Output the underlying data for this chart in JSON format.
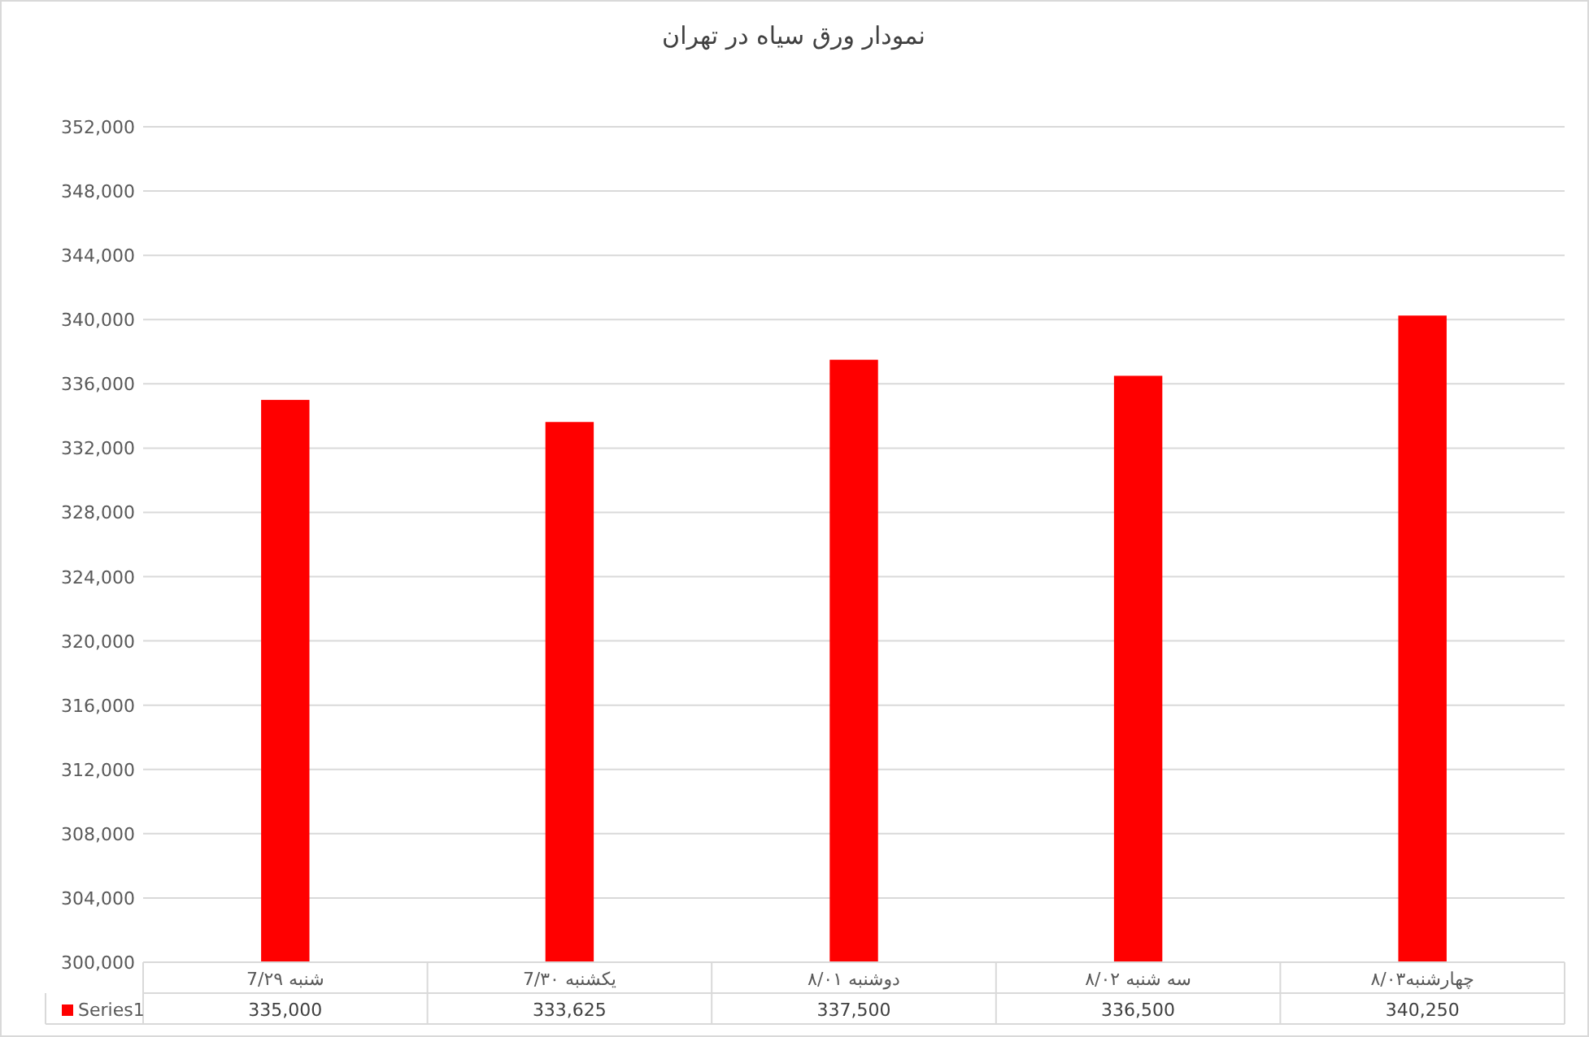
{
  "chart_data": {
    "type": "bar",
    "title": "نمودار ورق سیاه در تهران",
    "categories": [
      "شنبه 7/۲۹",
      "یکشنبه 7/۳۰",
      "دوشنبه ۸/۰۱",
      "سه شنبه ۸/۰۲",
      "چهارشنبه۸/۰۳"
    ],
    "series": [
      {
        "name": "Series1",
        "color": "#ff0000",
        "values": [
          335000,
          333625,
          337500,
          336500,
          340250
        ],
        "value_labels": [
          "335,000",
          "333,625",
          "337,500",
          "336,500",
          "340,250"
        ]
      }
    ],
    "ylim": [
      300000,
      352000
    ],
    "yticks": [
      {
        "value": 300000,
        "label": "300,000"
      },
      {
        "value": 304000,
        "label": "304,000"
      },
      {
        "value": 308000,
        "label": "308,000"
      },
      {
        "value": 312000,
        "label": "312,000"
      },
      {
        "value": 316000,
        "label": "316,000"
      },
      {
        "value": 320000,
        "label": "320,000"
      },
      {
        "value": 324000,
        "label": "324,000"
      },
      {
        "value": 328000,
        "label": "328,000"
      },
      {
        "value": 332000,
        "label": "332,000"
      },
      {
        "value": 336000,
        "label": "336,000"
      },
      {
        "value": 340000,
        "label": "340,000"
      },
      {
        "value": 344000,
        "label": "344,000"
      },
      {
        "value": 348000,
        "label": "348,000"
      },
      {
        "value": 352000,
        "label": "352,000"
      }
    ],
    "grid": "y",
    "legend": "bottom"
  }
}
